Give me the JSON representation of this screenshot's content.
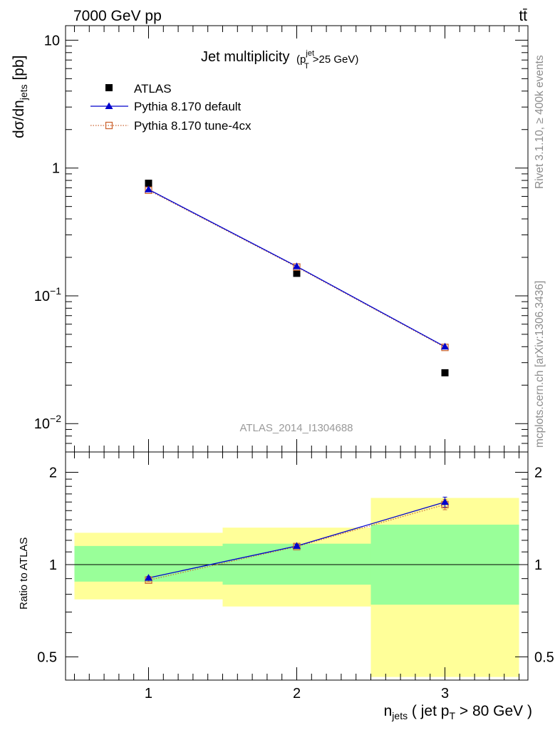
{
  "header": {
    "energy_label": "7000 GeV pp",
    "process_label": "tt̄"
  },
  "side_labels": {
    "rivet": "Rivet 3.1.10, ≥ 400k events",
    "mcplots": "mcplots.cern.ch [arXiv:1306.3436]"
  },
  "chart_data": {
    "type": "scatter",
    "title": "Jet multiplicity",
    "title_cut": {
      "p": "p",
      "sup": "jet",
      "sub": "T",
      "rest": ">25 GeV"
    },
    "analysis_label": "ATLAS_2014_I1304688",
    "xlabel": {
      "n": "n",
      "n_sub": "jets",
      "mid": " ( jet p",
      "p_sub": "T",
      "end": " > 80 GeV )"
    },
    "ylabel": {
      "pre": "dσ/dn",
      "sub": "jets",
      "post": " [pb]"
    },
    "ratio_ylabel": "Ratio to ATLAS",
    "x": [
      1,
      2,
      3
    ],
    "xlim": [
      0.44,
      3.56
    ],
    "x_ticks": [
      "1",
      "2",
      "3"
    ],
    "ylim": [
      0.006,
      13
    ],
    "y_scale": "log",
    "y_ticks": [
      {
        "value": 10,
        "base": "10",
        "exp": ""
      },
      {
        "value": 1,
        "base": "1",
        "exp": ""
      },
      {
        "value": 0.1,
        "base": "10",
        "exp": "−1"
      },
      {
        "value": 0.01,
        "base": "10",
        "exp": "−2"
      }
    ],
    "ratio_ylim": [
      0.42,
      2.33
    ],
    "ratio_y_scale": "log",
    "ratio_y_ticks": [
      {
        "value": 0.5,
        "label": "0.5"
      },
      {
        "value": 1,
        "label": "1"
      },
      {
        "value": 2,
        "label": "2"
      }
    ],
    "legend_position": "top-left",
    "series": [
      {
        "name": "ATLAS",
        "color": "#000000",
        "marker": "square",
        "values": [
          0.76,
          0.15,
          0.025
        ]
      },
      {
        "name": "Pythia 8.170 default",
        "color": "#0000cc",
        "marker": "triangle",
        "line": "solid",
        "values": [
          0.68,
          0.17,
          0.04
        ]
      },
      {
        "name": "Pythia 8.170 tune-4cx",
        "color": "#cc6633",
        "marker": "open-square",
        "line": "dotted",
        "values": [
          0.67,
          0.168,
          0.0395
        ]
      }
    ],
    "ratio_series": [
      {
        "name": "Pythia 8.170 default",
        "values": [
          0.905,
          1.15,
          1.6
        ],
        "errors": [
          0.01,
          0.015,
          0.06
        ]
      },
      {
        "name": "Pythia 8.170 tune-4cx",
        "values": [
          0.89,
          1.145,
          1.57
        ],
        "errors": [
          0.01,
          0.015,
          0.06
        ]
      }
    ],
    "bands": [
      {
        "x_range": [
          0.5,
          1.5
        ],
        "inner": [
          0.88,
          1.15
        ],
        "outer": [
          0.77,
          1.27
        ]
      },
      {
        "x_range": [
          1.5,
          2.5
        ],
        "inner": [
          0.86,
          1.17
        ],
        "outer": [
          0.73,
          1.32
        ]
      },
      {
        "x_range": [
          2.5,
          3.5
        ],
        "inner": [
          0.74,
          1.35
        ],
        "outer": [
          0.43,
          1.65
        ]
      }
    ],
    "band_colors": {
      "inner": "#99ff99",
      "outer": "#ffff99"
    }
  }
}
